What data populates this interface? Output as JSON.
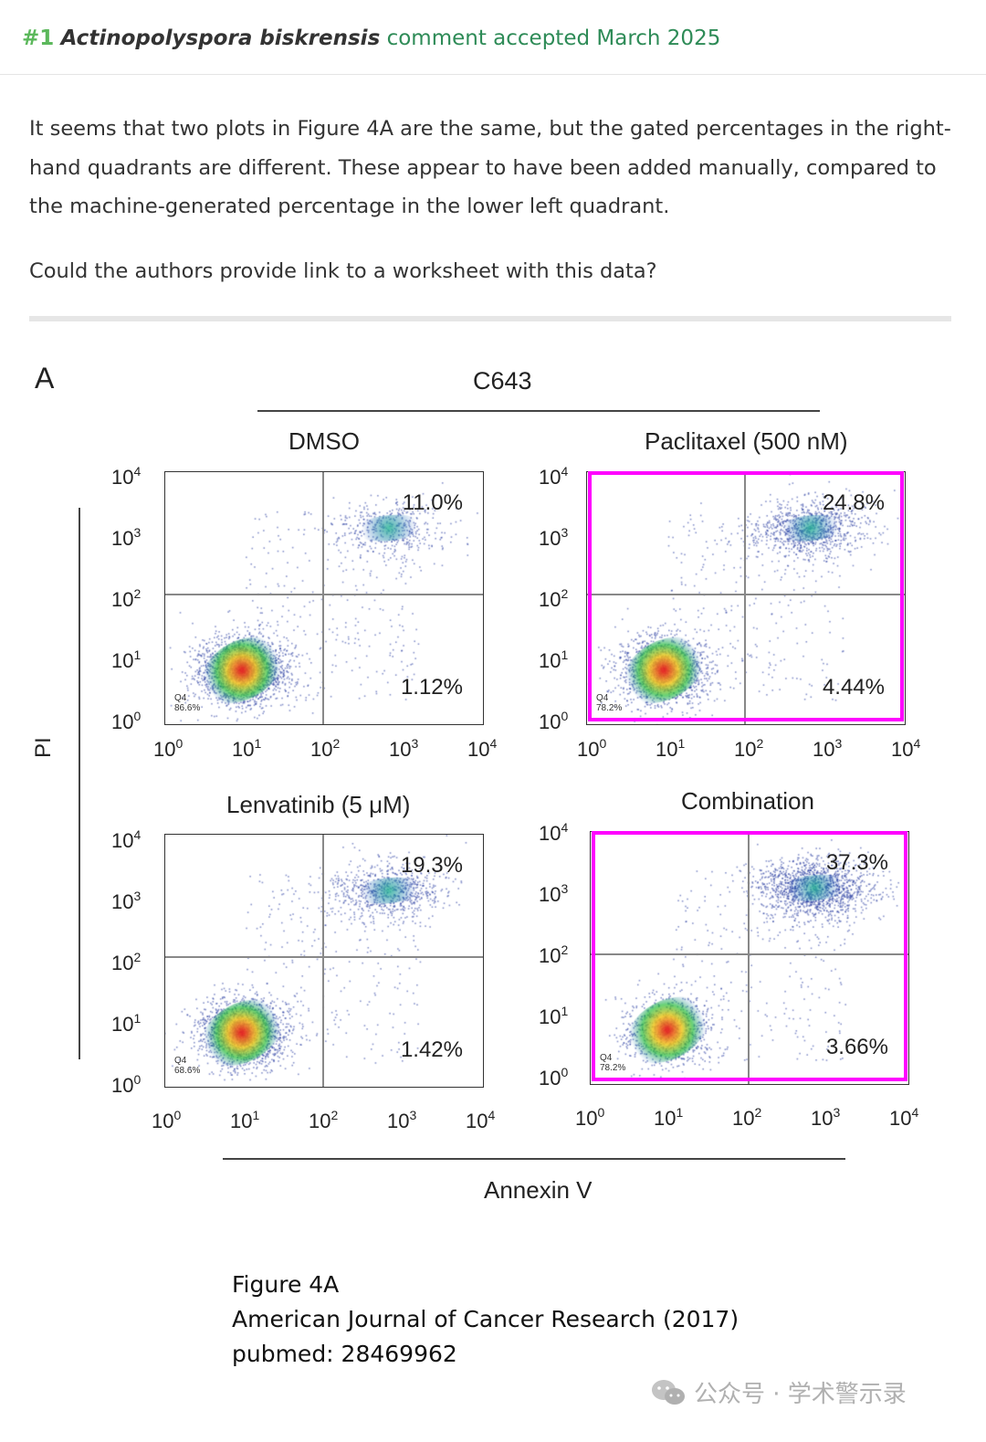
{
  "header": {
    "number": "#1",
    "species": "Actinopolyspora biskrensis",
    "status": "comment accepted March 2025"
  },
  "comment": {
    "paragraph1": "It seems that two plots in Figure 4A are the same, but the gated percentages in the right-hand quadrants are different. These appear to have been added manually, compared to the machine-generated percentage in the lower left quadrant.",
    "paragraph2": "Could the authors provide link to a worksheet with this data?"
  },
  "figure": {
    "panel_letter": "A",
    "cell_line": "C643",
    "y_axis_label": "PI",
    "x_axis_label": "Annexin V",
    "tick_exponents": [
      "0",
      "1",
      "2",
      "3",
      "4"
    ],
    "plots": [
      {
        "condition": "DMSO",
        "upper_right": "11.0%",
        "lower_right": "1.12%",
        "q4_label": "Q4",
        "q4_value": "86.6%",
        "highlighted": false
      },
      {
        "condition": "Paclitaxel (500 nM)",
        "upper_right": "24.8%",
        "lower_right": "4.44%",
        "q4_label": "Q4",
        "q4_value": "78.2%",
        "highlighted": true
      },
      {
        "condition": "Lenvatinib (5 μM)",
        "upper_right": "19.3%",
        "lower_right": "1.42%",
        "q4_label": "Q4",
        "q4_value": "68.6%",
        "highlighted": false
      },
      {
        "condition": "Combination",
        "upper_right": "37.3%",
        "lower_right": "3.66%",
        "q4_label": "Q4",
        "q4_value": "78.2%",
        "highlighted": true
      }
    ],
    "highlight_color": "#ff00ff"
  },
  "caption": {
    "line1": "Figure 4A",
    "line2": "American Journal of Cancer Research (2017)",
    "line3": "pubmed: 28469962"
  },
  "watermark": {
    "text": "公众号 · 学术警示录",
    "icon": "wechat-icon"
  },
  "colors": {
    "accent_green": "#5cb85c",
    "status_green": "#2e8b57",
    "divider": "#e6e6e6"
  }
}
